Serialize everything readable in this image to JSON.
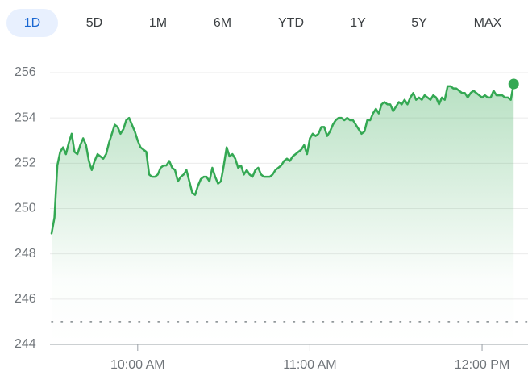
{
  "ranges": [
    "1D",
    "5D",
    "1M",
    "6M",
    "YTD",
    "1Y",
    "5Y",
    "MAX"
  ],
  "selected_range": "1D",
  "chart_data": {
    "type": "line",
    "color": "#34a853",
    "grid": true,
    "ylim": [
      244,
      256
    ],
    "yticks": [
      244,
      246,
      248,
      250,
      252,
      254,
      256
    ],
    "xlim": [
      570,
      736
    ],
    "xticks": [
      {
        "value": 600,
        "label": "10:00 AM"
      },
      {
        "value": 660,
        "label": "11:00 AM"
      },
      {
        "value": 720,
        "label": "12:00 PM"
      }
    ],
    "previous_close": 245.0,
    "x": [
      570,
      571,
      572,
      573,
      574,
      575,
      576,
      577,
      578,
      579,
      580,
      581,
      582,
      583,
      584,
      585,
      586,
      587,
      588,
      589,
      590,
      591,
      592,
      593,
      594,
      595,
      596,
      597,
      598,
      599,
      600,
      601,
      602,
      603,
      604,
      605,
      606,
      607,
      608,
      609,
      610,
      611,
      612,
      613,
      614,
      615,
      616,
      617,
      618,
      619,
      620,
      621,
      622,
      623,
      624,
      625,
      626,
      627,
      628,
      629,
      630,
      631,
      632,
      633,
      634,
      635,
      636,
      637,
      638,
      639,
      640,
      641,
      642,
      643,
      644,
      645,
      646,
      647,
      648,
      649,
      650,
      651,
      652,
      653,
      654,
      655,
      656,
      657,
      658,
      659,
      660,
      661,
      662,
      663,
      664,
      665,
      666,
      667,
      668,
      669,
      670,
      671,
      672,
      673,
      674,
      675,
      676,
      677,
      678,
      679,
      680,
      681,
      682,
      683,
      684,
      685,
      686,
      687,
      688,
      689,
      690,
      691,
      692,
      693,
      694,
      695,
      696,
      697,
      698,
      699,
      700,
      701,
      702,
      703,
      704,
      705,
      706,
      707,
      708,
      709,
      710,
      711,
      712,
      713,
      714,
      715,
      716,
      717,
      718,
      719,
      720,
      721,
      722,
      723,
      724,
      725,
      726,
      727,
      728,
      729,
      730,
      731
    ],
    "values": [
      248.9,
      249.6,
      251.9,
      252.5,
      252.7,
      252.4,
      252.9,
      253.3,
      252.5,
      252.4,
      252.8,
      253.1,
      252.8,
      252.1,
      251.7,
      252.1,
      252.4,
      252.3,
      252.2,
      252.4,
      252.9,
      253.3,
      253.7,
      253.6,
      253.3,
      253.5,
      253.9,
      254.0,
      253.7,
      253.4,
      253.0,
      252.7,
      252.6,
      252.5,
      251.5,
      251.4,
      251.4,
      251.5,
      251.8,
      251.9,
      251.9,
      252.1,
      251.8,
      251.7,
      251.2,
      251.4,
      251.5,
      251.7,
      251.2,
      250.7,
      250.6,
      251.0,
      251.3,
      251.4,
      251.4,
      251.2,
      251.8,
      251.4,
      251.1,
      251.2,
      251.9,
      252.7,
      252.3,
      252.4,
      252.2,
      251.8,
      251.9,
      251.5,
      251.7,
      251.5,
      251.4,
      251.7,
      251.8,
      251.5,
      251.4,
      251.4,
      251.4,
      251.5,
      251.7,
      251.8,
      251.9,
      252.1,
      252.2,
      252.1,
      252.3,
      252.4,
      252.5,
      252.6,
      252.8,
      252.4,
      253.1,
      253.3,
      253.2,
      253.3,
      253.6,
      253.6,
      253.2,
      253.4,
      253.7,
      253.9,
      254.0,
      254.0,
      253.9,
      254.0,
      253.9,
      253.9,
      253.7,
      253.5,
      253.3,
      253.4,
      253.9,
      253.9,
      254.2,
      254.4,
      254.2,
      254.6,
      254.7,
      254.6,
      254.6,
      254.3,
      254.5,
      254.7,
      254.6,
      254.8,
      254.6,
      254.9,
      255.1,
      254.8,
      254.9,
      254.8,
      255.0,
      254.9,
      254.8,
      255.0,
      254.9,
      254.6,
      254.9,
      254.8,
      255.4,
      255.4,
      255.3,
      255.3,
      255.2,
      255.1,
      255.1,
      254.9,
      255.1,
      255.2,
      255.1,
      255.0,
      254.9,
      255.0,
      254.9,
      254.9,
      255.2,
      255.0,
      255.0,
      255.0,
      254.9,
      254.9,
      254.8,
      255.5
    ]
  }
}
